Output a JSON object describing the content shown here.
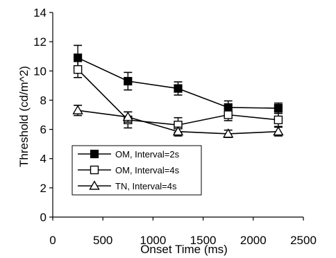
{
  "chart_data": {
    "type": "line",
    "xlabel": "Onset Time (ms)",
    "ylabel": "Threshold (cd/m^2)",
    "xlim": [
      0,
      2500
    ],
    "ylim": [
      0,
      14
    ],
    "x_ticks": [
      0,
      500,
      1000,
      1500,
      2000,
      2500
    ],
    "y_ticks": [
      0,
      2,
      4,
      6,
      8,
      10,
      12,
      14
    ],
    "grid": false,
    "legend_position": "lower-left",
    "x": [
      250,
      750,
      1250,
      1750,
      2250
    ],
    "series": [
      {
        "name": "OM, Interval=2s",
        "marker": "filled-square",
        "values": [
          10.9,
          9.3,
          8.8,
          7.5,
          7.45
        ],
        "errors": [
          0.85,
          0.6,
          0.45,
          0.45,
          0.35
        ]
      },
      {
        "name": "OM, Interval=4s",
        "marker": "open-square",
        "values": [
          10.1,
          6.65,
          6.3,
          7.0,
          6.65
        ],
        "errors": [
          0.55,
          0.55,
          0.5,
          0.4,
          0.45
        ]
      },
      {
        "name": "TN, Interval=4s",
        "marker": "open-triangle",
        "values": [
          7.3,
          6.85,
          5.85,
          5.7,
          5.85
        ],
        "errors": [
          0.35,
          0.35,
          0.3,
          0.25,
          0.3
        ]
      }
    ],
    "colors": {
      "line": "#000000",
      "background": "#ffffff"
    }
  }
}
